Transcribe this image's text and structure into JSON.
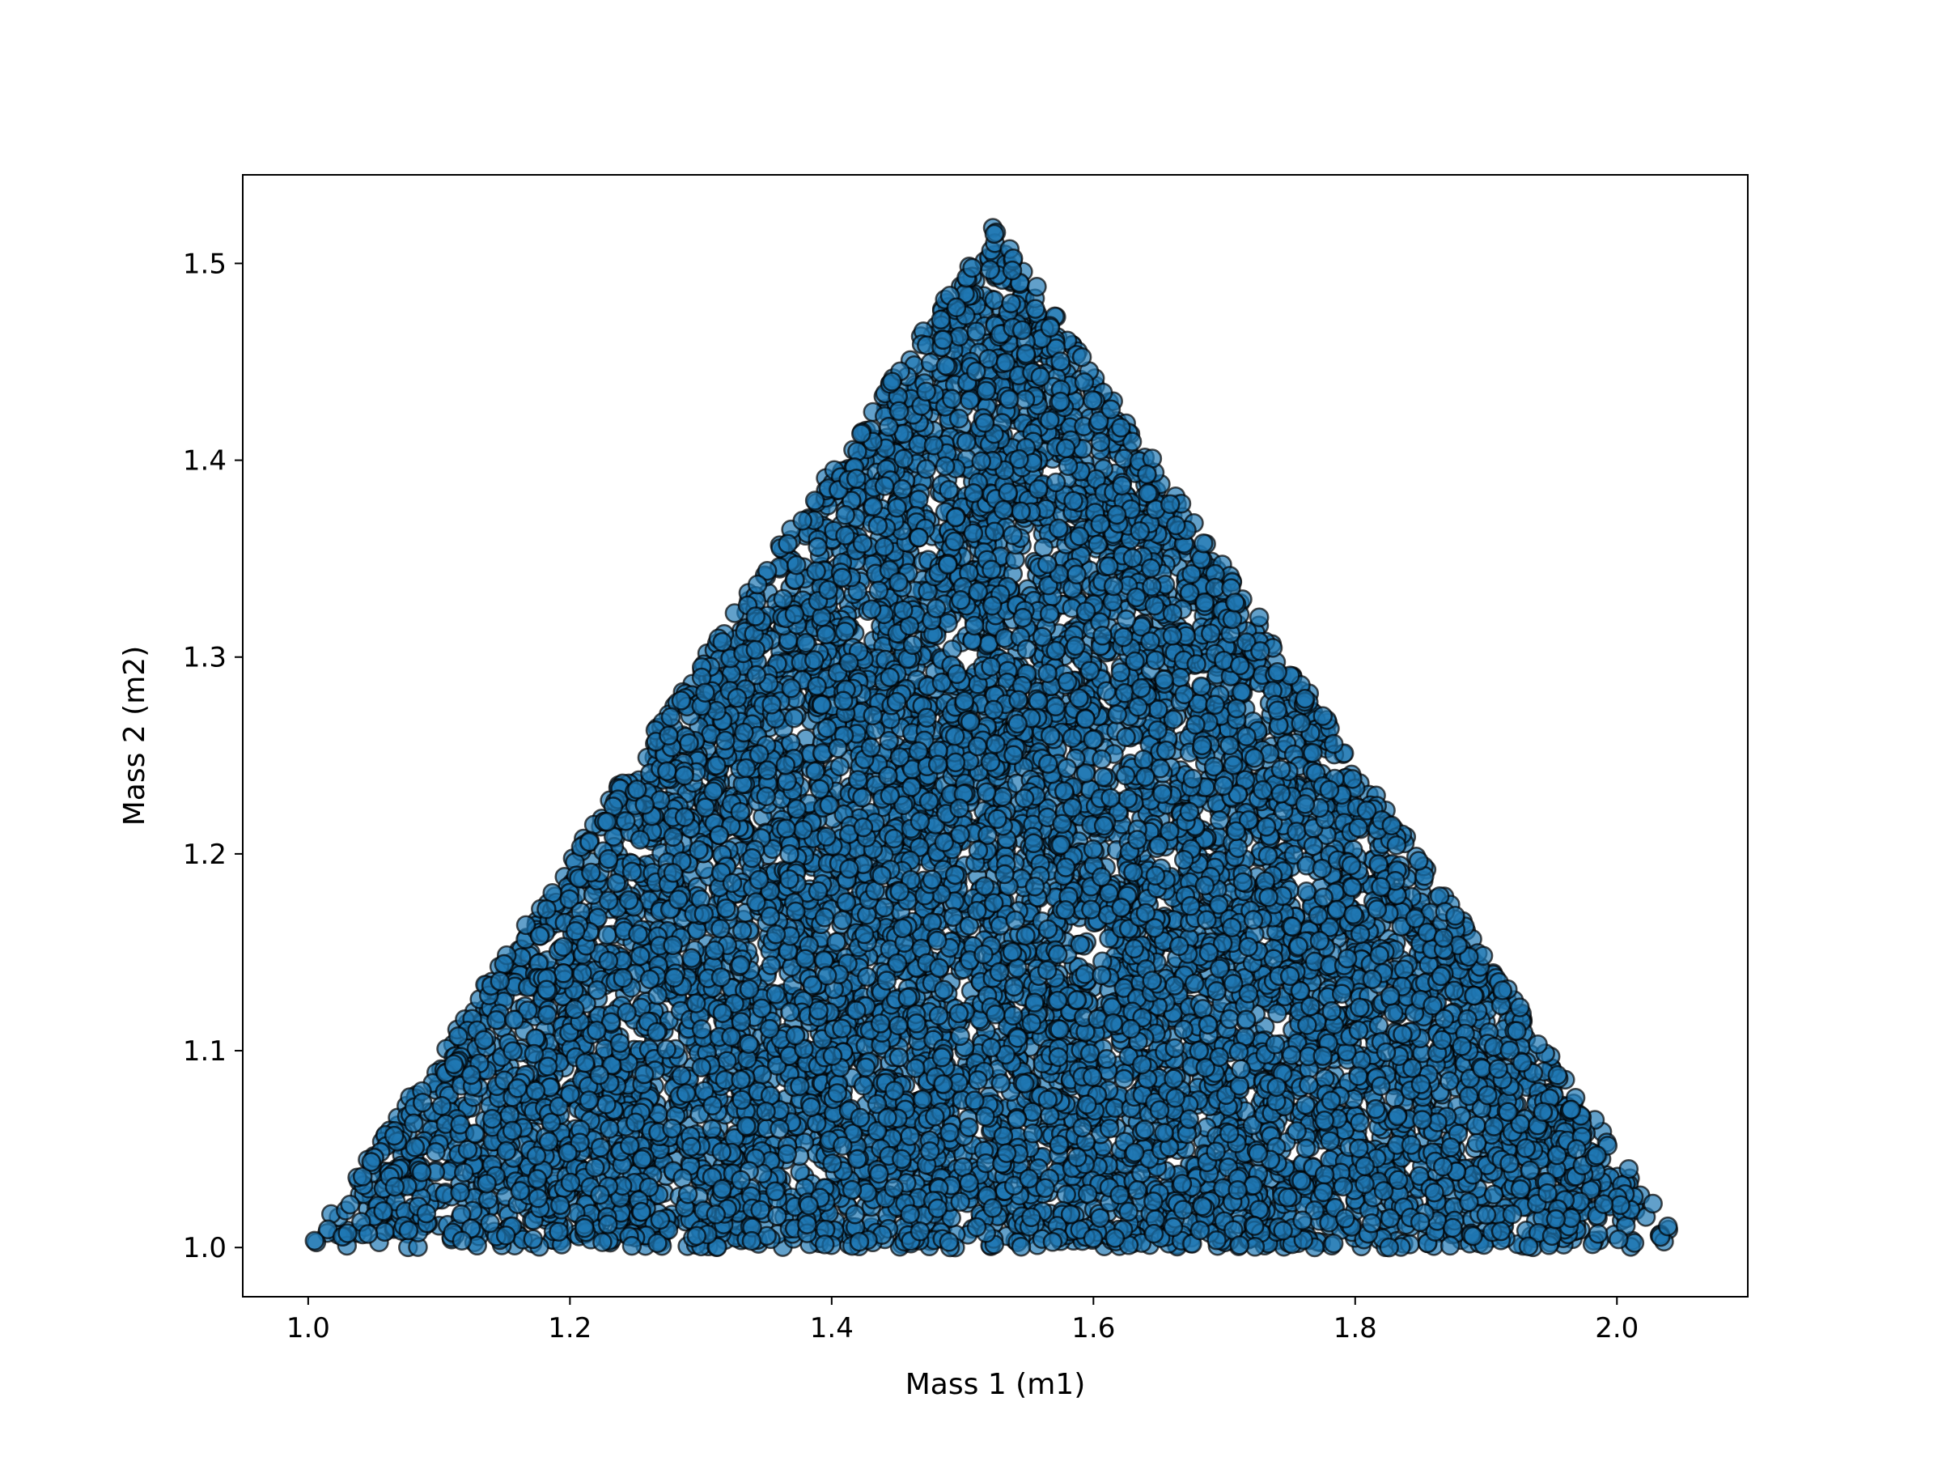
{
  "chart_data": {
    "type": "scatter",
    "title": "",
    "xlabel": "Mass 1 (m1)",
    "ylabel": "Mass 2 (m2)",
    "xlim": [
      0.95,
      2.1
    ],
    "ylim": [
      0.975,
      1.545
    ],
    "xticks": [
      "1.0",
      "1.2",
      "1.4",
      "1.6",
      "1.8",
      "2.0"
    ],
    "yticks": [
      "1.0",
      "1.1",
      "1.2",
      "1.3",
      "1.4",
      "1.5"
    ],
    "grid": false,
    "legend": "none",
    "marker": {
      "shape": "circle",
      "fill": "#1f77b4",
      "edge": "#000000",
      "alpha": 0.7
    },
    "distribution": {
      "description": "points fill a triangle",
      "vertices": [
        [
          1.0,
          1.0
        ],
        [
          2.05,
          1.0
        ],
        [
          1.525,
          1.52
        ]
      ],
      "count": 10000
    }
  }
}
